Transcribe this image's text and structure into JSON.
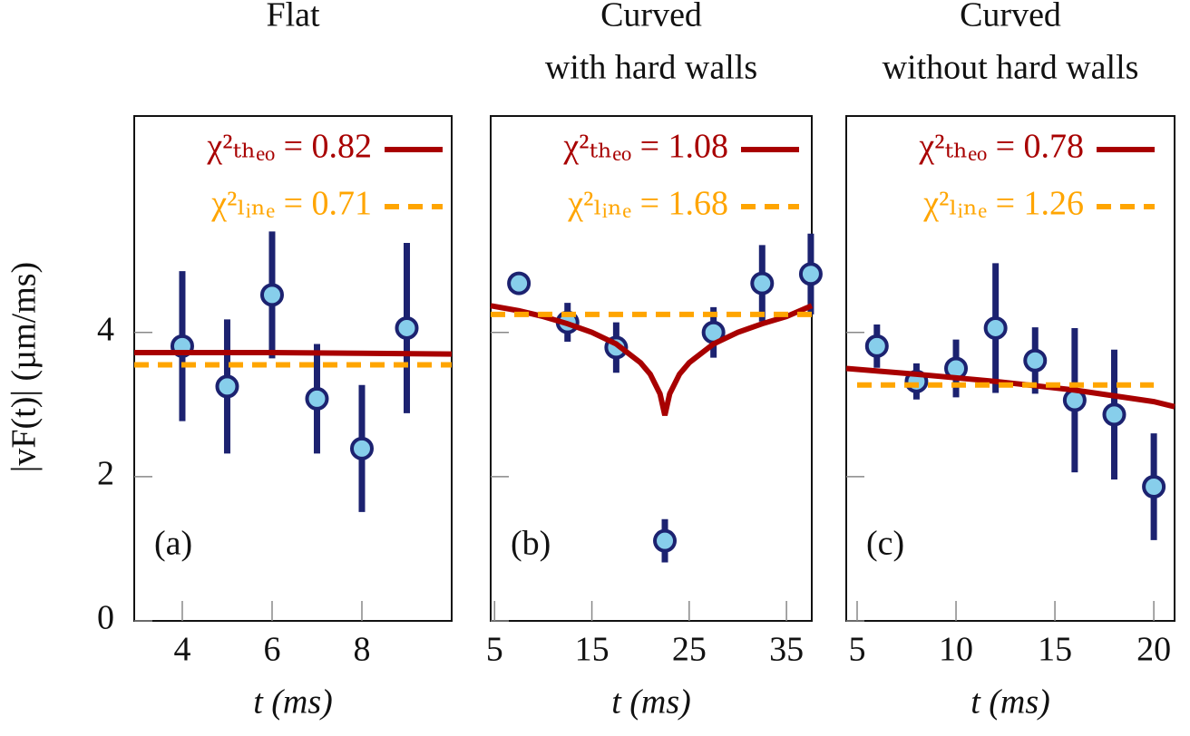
{
  "chart_data": [
    {
      "type": "scatter",
      "title": "Flat",
      "annotation": "(a)",
      "xlabel": "t (ms)",
      "ylabel": "|vF(t)| (µm/ms)",
      "xlim": [
        2.93,
        10
      ],
      "xticks": [
        4,
        6,
        8
      ],
      "ylim": [
        0,
        7
      ],
      "yticks": [
        0,
        2,
        4
      ],
      "show_ytick_labels": true,
      "series": [
        {
          "color": "#87ceeb",
          "error_color": "#1c2270",
          "x": [
            4,
            5,
            6,
            7,
            8,
            9
          ],
          "values": [
            3.81,
            3.25,
            4.52,
            3.08,
            2.39,
            4.06
          ],
          "errors": [
            1.04,
            0.93,
            0.88,
            0.76,
            0.88,
            1.18
          ]
        },
        {
          "name": "χ²ₜₕₑₒ = 0.82",
          "color": "#a80000",
          "style": "solid",
          "x": [
            2.93,
            4,
            6,
            8,
            10
          ],
          "values": [
            3.72,
            3.72,
            3.72,
            3.71,
            3.7
          ]
        },
        {
          "name": "χ²ₗᵢₙₑ = 0.71",
          "color": "#ffa500",
          "style": "dashed",
          "x": [
            2.93,
            10
          ],
          "values": [
            3.55,
            3.55
          ]
        }
      ]
    },
    {
      "type": "scatter",
      "title": "Curved",
      "subtitle": "with hard walls",
      "annotation": "(b)",
      "xlabel": "t (ms)",
      "xlim": [
        4.6,
        37.6
      ],
      "xticks": [
        5,
        15,
        25,
        35
      ],
      "ylim": [
        0,
        7
      ],
      "yticks": [
        0,
        2,
        4
      ],
      "show_ytick_labels": false,
      "series": [
        {
          "color": "#87ceeb",
          "error_color": "#1c2270",
          "x": [
            7.5,
            12.5,
            17.5,
            22.5,
            27.5,
            32.5,
            37.5
          ],
          "values": [
            4.68,
            4.14,
            3.79,
            1.11,
            4.0,
            4.68,
            4.81
          ],
          "errors": [
            0.13,
            0.27,
            0.35,
            0.3,
            0.35,
            0.53,
            0.56
          ]
        },
        {
          "name": "χ²ₜₕₑₒ = 1.08",
          "color": "#a80000",
          "style": "solid",
          "x": [
            4.6,
            7.5,
            10,
            12.5,
            15,
            17.5,
            20,
            21,
            22,
            22.5,
            23,
            24,
            25,
            27.5,
            30,
            32.5,
            35,
            37.6
          ],
          "values": [
            4.37,
            4.3,
            4.22,
            4.12,
            4.0,
            3.84,
            3.58,
            3.42,
            3.15,
            2.85,
            3.15,
            3.42,
            3.58,
            3.84,
            4.0,
            4.12,
            4.22,
            4.37
          ]
        },
        {
          "name": "χ²ₗᵢₙₑ = 1.68",
          "color": "#ffa500",
          "style": "dashed",
          "x": [
            4.6,
            37.6
          ],
          "values": [
            4.25,
            4.25
          ]
        }
      ]
    },
    {
      "type": "scatter",
      "title": "Curved",
      "subtitle": "without hard walls",
      "annotation": "(c)",
      "xlabel": "t (ms)",
      "xlim": [
        4.45,
        21.05
      ],
      "xticks": [
        5,
        10,
        15,
        20
      ],
      "ylim": [
        0,
        7
      ],
      "yticks": [
        0,
        2,
        4
      ],
      "show_ytick_labels": false,
      "series": [
        {
          "color": "#87ceeb",
          "error_color": "#1c2270",
          "x": [
            6,
            8,
            10,
            12,
            14,
            16,
            18,
            20
          ],
          "values": [
            3.81,
            3.32,
            3.5,
            4.06,
            3.61,
            3.06,
            2.86,
            1.86
          ],
          "errors": [
            0.3,
            0.25,
            0.4,
            0.9,
            0.46,
            1.0,
            0.9,
            0.74
          ]
        },
        {
          "name": "χ²ₜₕₑₒ = 0.78",
          "color": "#a80000",
          "style": "solid",
          "x": [
            4.45,
            8,
            12,
            16,
            20,
            21.05
          ],
          "values": [
            3.5,
            3.42,
            3.32,
            3.2,
            3.04,
            2.97
          ]
        },
        {
          "name": "χ²ₗᵢₙₑ = 1.26",
          "color": "#ffa500",
          "style": "dashed",
          "x": [
            5,
            20
          ],
          "values": [
            3.27,
            3.27
          ]
        }
      ]
    }
  ]
}
